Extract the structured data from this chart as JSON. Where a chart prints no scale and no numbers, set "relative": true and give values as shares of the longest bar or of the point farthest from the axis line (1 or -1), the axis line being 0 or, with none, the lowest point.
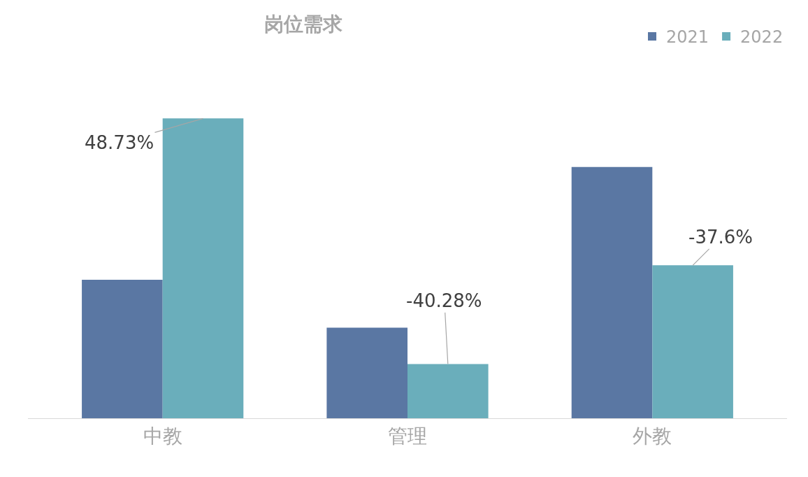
{
  "chart_data": {
    "type": "bar",
    "title": "岗位需求",
    "relative": true,
    "categories": [
      "中教",
      "管理",
      "外教"
    ],
    "series": [
      {
        "name": "2021",
        "color": "#5a77a3",
        "values": [
          0.462,
          0.302,
          0.838
        ]
      },
      {
        "name": "2022",
        "color": "#6aaebb",
        "values": [
          1,
          0.181,
          0.51
        ]
      }
    ],
    "annotations": [
      {
        "text": "48.73%",
        "x": "中教",
        "y": 1
      },
      {
        "text": "-40.28%",
        "x": "管理",
        "y": 0.181
      },
      {
        "text": "-37.6%",
        "x": "外教",
        "y": 0.51
      }
    ],
    "legend": "top right"
  }
}
